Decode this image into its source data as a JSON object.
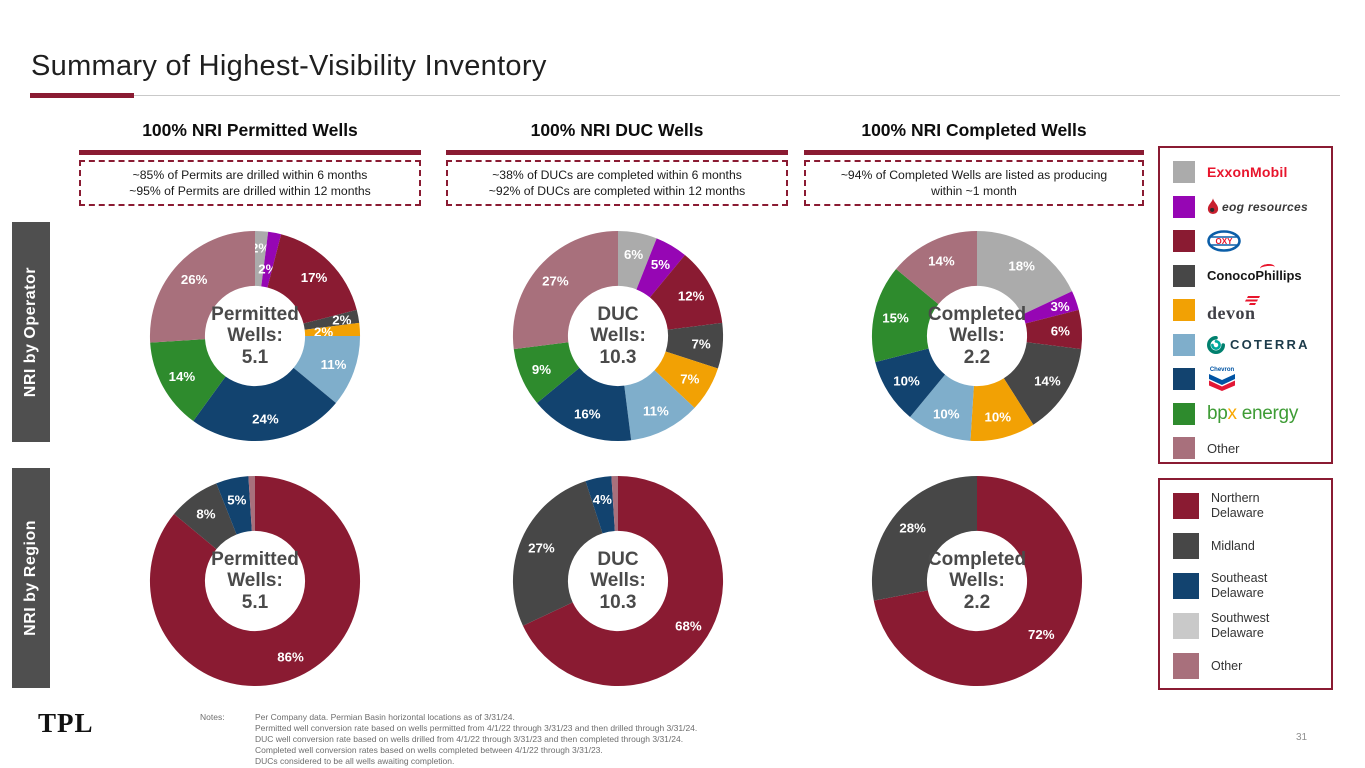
{
  "slide": {
    "title": "Summary of Highest-Visibility Inventory",
    "page_number": "31",
    "footer_logo": "TPL"
  },
  "row_labels": {
    "operator": "NRI by Operator",
    "region": "NRI by Region"
  },
  "columns": [
    {
      "header": "100% NRI Permitted Wells",
      "callout_line1": "~85% of Permits are drilled within 6 months",
      "callout_line2": "~95% of Permits are drilled within 12 months"
    },
    {
      "header": "100% NRI DUC Wells",
      "callout_line1": "~38% of DUCs are completed within 6 months",
      "callout_line2": "~92% of DUCs are completed within 12 months"
    },
    {
      "header": "100% NRI Completed Wells",
      "callout_line1": "~94% of Completed Wells are listed as producing within ~1 month",
      "callout_line2": ""
    }
  ],
  "chart_data": [
    {
      "id": "operator_permitted",
      "type": "pie",
      "center_label": "Permitted\nWells:\n5.1",
      "categories": [
        "ExxonMobil",
        "eog resources",
        "Oxy",
        "ConocoPhillips",
        "devon",
        "COTERRA",
        "Chevron",
        "bpx energy",
        "Other"
      ],
      "values": [
        2,
        2,
        17,
        2,
        2,
        11,
        24,
        14,
        26
      ],
      "labels": [
        "2%",
        "2%",
        "17%",
        "2%",
        "2%",
        "11%",
        "24%",
        "14%",
        "26%"
      ],
      "colors": [
        "#ababab",
        "#9606b4",
        "#8a1b32",
        "#474747",
        "#f2a104",
        "#7faecb",
        "#12436f",
        "#2e8b2d",
        "#a8707c"
      ]
    },
    {
      "id": "operator_duc",
      "type": "pie",
      "center_label": "DUC\nWells:\n10.3",
      "categories": [
        "ExxonMobil",
        "eog resources",
        "Oxy",
        "ConocoPhillips",
        "devon",
        "COTERRA",
        "Chevron",
        "bpx energy",
        "Other"
      ],
      "values": [
        6,
        5,
        12,
        7,
        7,
        11,
        16,
        9,
        27
      ],
      "labels": [
        "6%",
        "5%",
        "12%",
        "7%",
        "7%",
        "11%",
        "16%",
        "9%",
        "27%"
      ],
      "colors": [
        "#ababab",
        "#9606b4",
        "#8a1b32",
        "#474747",
        "#f2a104",
        "#7faecb",
        "#12436f",
        "#2e8b2d",
        "#a8707c"
      ]
    },
    {
      "id": "operator_completed",
      "type": "pie",
      "center_label": "Completed\nWells:\n2.2",
      "categories": [
        "ExxonMobil",
        "eog resources",
        "Oxy",
        "ConocoPhillips",
        "devon",
        "COTERRA",
        "Chevron",
        "bpx energy",
        "Other"
      ],
      "values": [
        18,
        3,
        6,
        14,
        10,
        10,
        10,
        15,
        14
      ],
      "labels": [
        "18%",
        "3%",
        "6%",
        "14%",
        "10%",
        "10%",
        "10%",
        "15%",
        "14%"
      ],
      "colors": [
        "#ababab",
        "#9606b4",
        "#8a1b32",
        "#474747",
        "#f2a104",
        "#7faecb",
        "#12436f",
        "#2e8b2d",
        "#a8707c"
      ]
    },
    {
      "id": "region_permitted",
      "type": "pie",
      "center_label": "Permitted\nWells:\n5.1",
      "categories": [
        "Northern Delaware",
        "Midland",
        "Southeast Delaware",
        "Other"
      ],
      "values": [
        86,
        8,
        5,
        1
      ],
      "labels": [
        "86%",
        "8%",
        "5%",
        ""
      ],
      "colors": [
        "#8a1b32",
        "#474747",
        "#12436f",
        "#a8707c"
      ]
    },
    {
      "id": "region_duc",
      "type": "pie",
      "center_label": "DUC\nWells:\n10.3",
      "categories": [
        "Northern Delaware",
        "Midland",
        "Southeast Delaware",
        "Other"
      ],
      "values": [
        68,
        27,
        4,
        1
      ],
      "labels": [
        "68%",
        "27%",
        "4%",
        ""
      ],
      "colors": [
        "#8a1b32",
        "#474747",
        "#12436f",
        "#a8707c"
      ]
    },
    {
      "id": "region_completed",
      "type": "pie",
      "center_label": "Completed\nWells:\n2.2",
      "categories": [
        "Northern Delaware",
        "Midland"
      ],
      "values": [
        72,
        28
      ],
      "labels": [
        "72%",
        "28%"
      ],
      "colors": [
        "#8a1b32",
        "#474747"
      ]
    }
  ],
  "legends": {
    "operators": [
      {
        "name": "ExxonMobil",
        "color": "#ababab"
      },
      {
        "name": "eog resources",
        "color": "#9606b4"
      },
      {
        "name": "OXY",
        "color": "#8a1b32"
      },
      {
        "name": "ConocoPhillips",
        "color": "#474747"
      },
      {
        "name": "devon",
        "color": "#f2a104"
      },
      {
        "name": "COTERRA",
        "color": "#7faecb"
      },
      {
        "name": "Chevron",
        "color": "#12436f"
      },
      {
        "name": "bpx energy",
        "color": "#2e8b2d",
        "logo_p1": "bp",
        "logo_p2": "x",
        "logo_p3": " energy"
      },
      {
        "name": "Other",
        "color": "#a8707c"
      }
    ],
    "regions": [
      {
        "name": "Northern Delaware",
        "color": "#8a1b32"
      },
      {
        "name": "Midland",
        "color": "#474747"
      },
      {
        "name": "Southeast Delaware",
        "color": "#12436f"
      },
      {
        "name": "Southwest Delaware",
        "color": "#c9c9c9"
      },
      {
        "name": "Other",
        "color": "#a8707c"
      }
    ]
  },
  "notes": {
    "label": "Notes:",
    "lines": [
      "Per Company data. Permian Basin horizontal locations as of 3/31/24.",
      "Permitted well conversion rate based on wells permitted from 4/1/22 through 3/31/23 and then drilled through 3/31/24.",
      "DUC well conversion rate based on wells drilled from 4/1/22 through 3/31/23 and then completed through 3/31/24.",
      "Completed well conversion rates based on wells completed between 4/1/22 through 3/31/23.",
      "DUCs considered to be all wells awaiting completion."
    ]
  },
  "accent": {
    "maroon": "#8a1b32"
  }
}
